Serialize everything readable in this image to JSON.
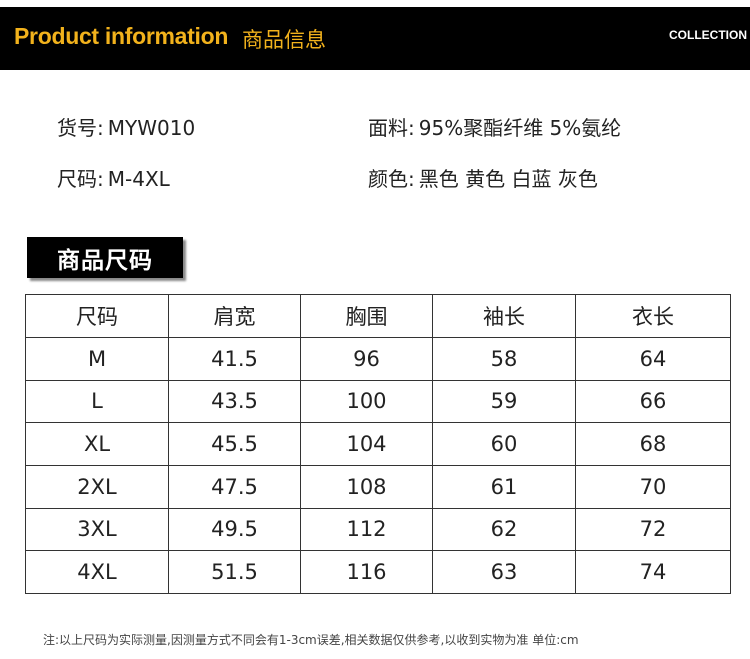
{
  "header": {
    "title_en": "Product information",
    "title_cn": "商品信息",
    "right_label": "COLLECTION"
  },
  "info": {
    "sku_label": "货号:",
    "sku_value": "MYW010",
    "fabric_label": "面料:",
    "fabric_value": "95%聚酯纤维 5%氨纶",
    "size_label": "尺码:",
    "size_value": "M-4XL",
    "color_label": "颜色:",
    "color_value": "黑色 黄色 白蓝 灰色"
  },
  "size_section": {
    "title": "商品尺码",
    "columns": [
      "尺码",
      "肩宽",
      "胸围",
      "袖长",
      "衣长"
    ],
    "rows": [
      [
        "M",
        "41.5",
        "96",
        "58",
        "64"
      ],
      [
        "L",
        "43.5",
        "100",
        "59",
        "66"
      ],
      [
        "XL",
        "45.5",
        "104",
        "60",
        "68"
      ],
      [
        "2XL",
        "47.5",
        "108",
        "61",
        "70"
      ],
      [
        "3XL",
        "49.5",
        "112",
        "62",
        "72"
      ],
      [
        "4XL",
        "51.5",
        "116",
        "63",
        "74"
      ]
    ]
  },
  "note": "注:以上尺码为实际测量,因测量方式不同会有1-3cm误差,相关数据仅供参考,以收到实物为准 单位:cm",
  "colors": {
    "header_bg": "#000000",
    "accent": "#f2b21c"
  }
}
